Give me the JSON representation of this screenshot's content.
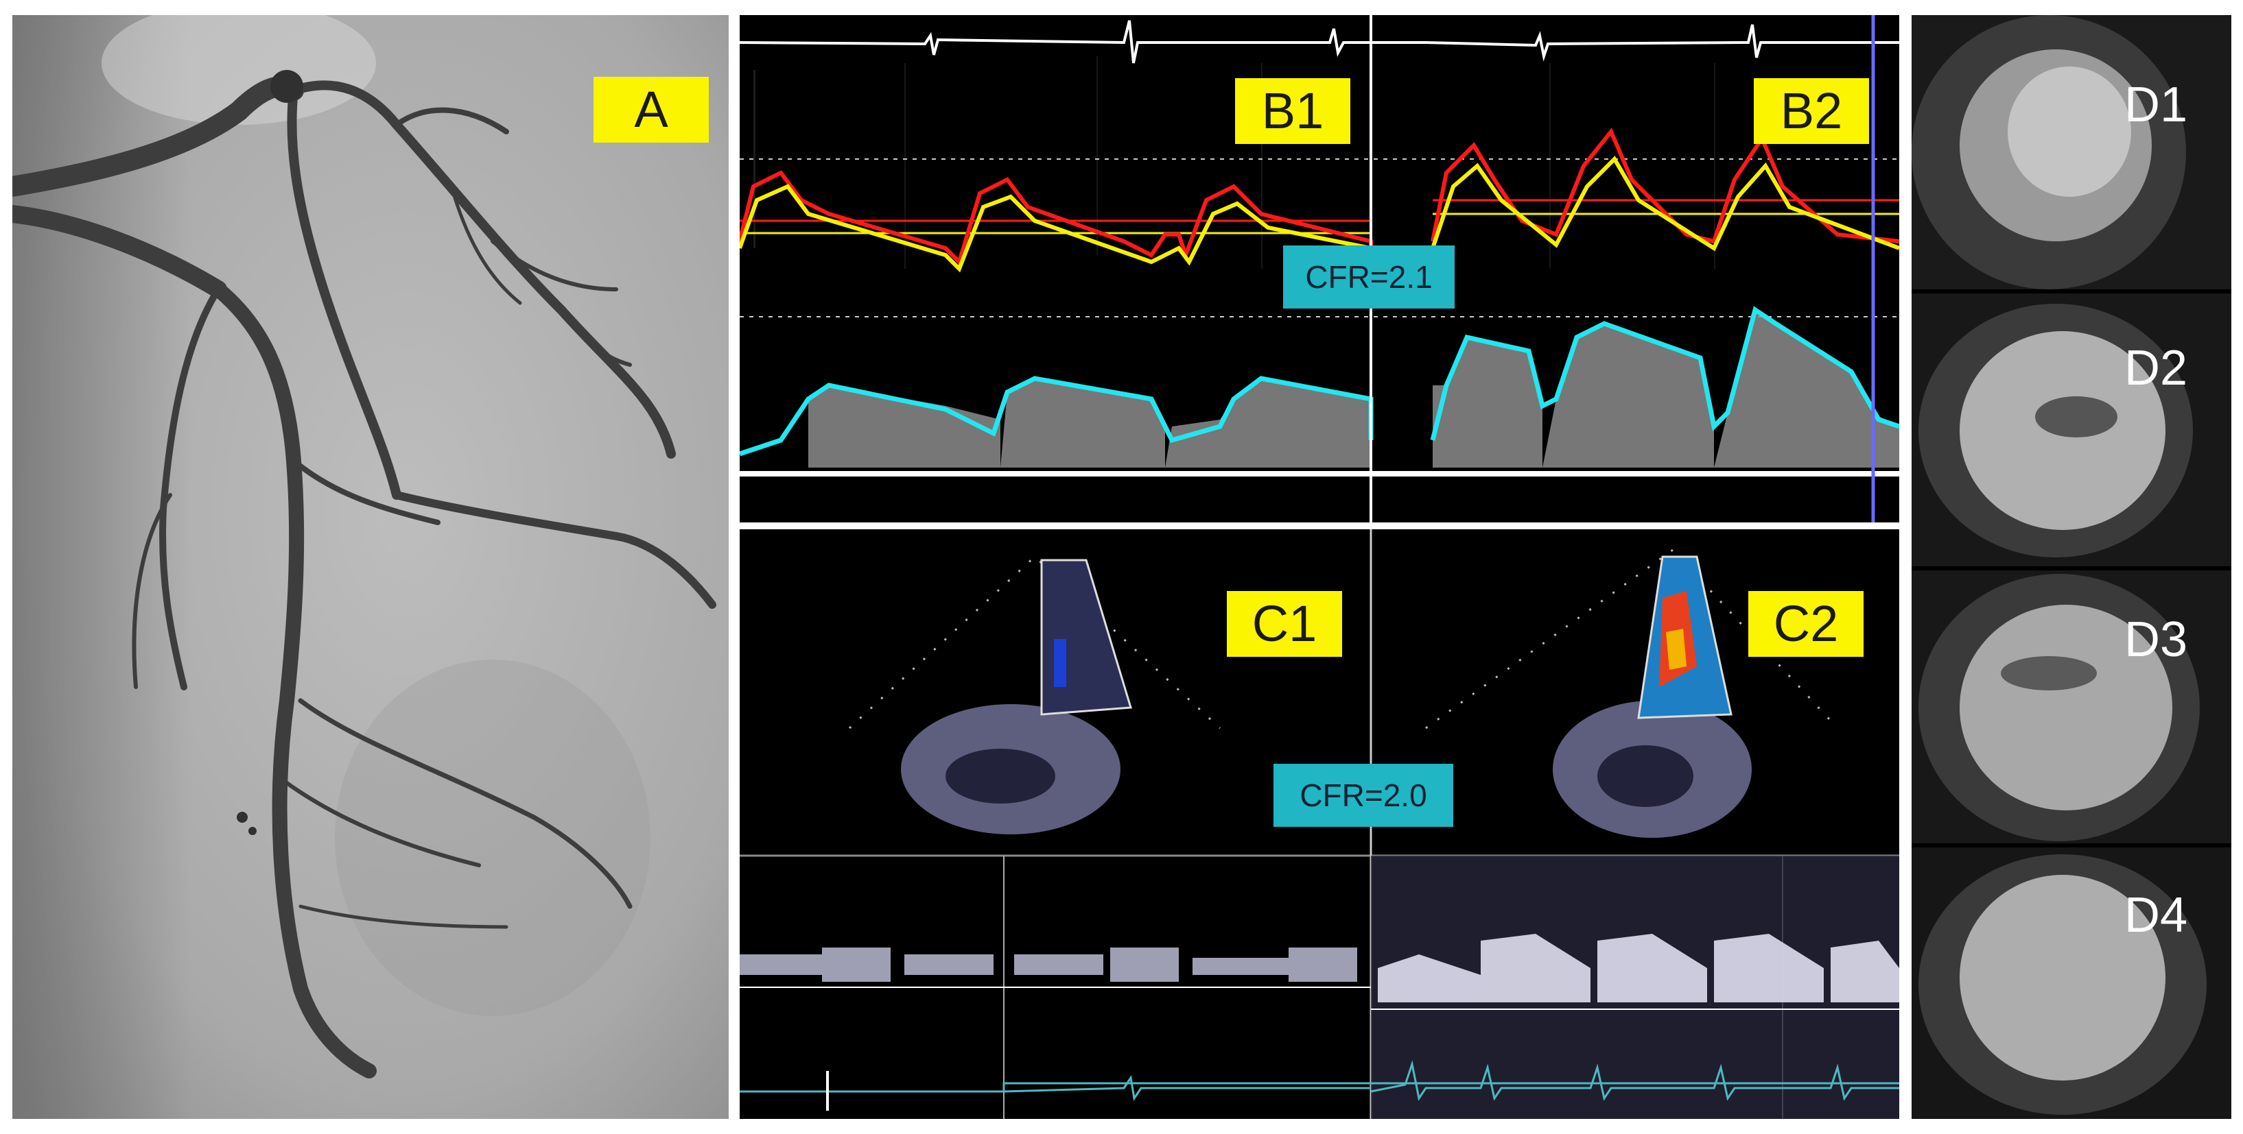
{
  "panels": {
    "a": {
      "label": "A"
    },
    "b1": {
      "label": "B1"
    },
    "b2": {
      "label": "B2"
    },
    "b_cfr": {
      "text": "CFR=2.1"
    },
    "c1": {
      "label": "C1"
    },
    "c2": {
      "label": "C2"
    },
    "c_cfr": {
      "text": "CFR=2.0"
    },
    "d": [
      {
        "label": "D1"
      },
      {
        "label": "D2"
      },
      {
        "label": "D3"
      },
      {
        "label": "D4"
      }
    ]
  },
  "colors": {
    "label_bg": "#fbf500",
    "cfr_bg": "#20b6c4",
    "pressure_aortic": "#ff1a1a",
    "pressure_distal": "#f5f000",
    "doppler_envelope": "#22e6f0"
  }
}
